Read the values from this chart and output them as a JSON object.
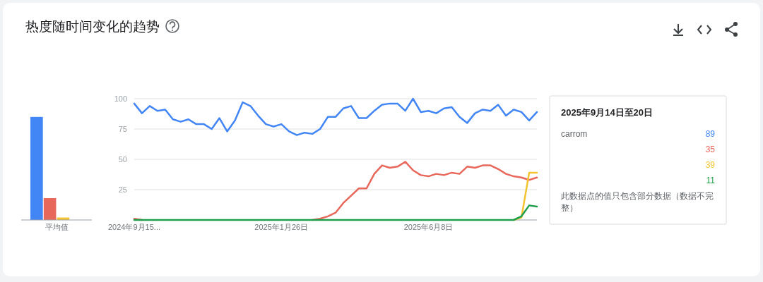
{
  "chart_data": [
    {
      "type": "bar",
      "categories": [
        "平均值"
      ],
      "ylim": [
        0,
        100
      ],
      "tick_labels": "x",
      "grid": false,
      "series": [
        {
          "color": "#4285f4",
          "values": [
            85
          ]
        },
        {
          "color": "#e8675b",
          "values": [
            18
          ]
        },
        {
          "color": "#f4c430",
          "values": [
            2
          ]
        },
        {
          "color": "#1e9e4a",
          "values": [
            0
          ]
        }
      ]
    },
    {
      "type": "line",
      "title": "热度随时间变化的趋势",
      "grid": "y",
      "xlim": [
        "2024-09-15",
        "2025-09-14"
      ],
      "ylim": [
        0,
        100
      ],
      "yticks": [
        25,
        50,
        75,
        100
      ],
      "xticks": [
        {
          "value": "2024-09-15",
          "label": "2024年9月15..."
        },
        {
          "value": "2025-01-26",
          "label": "2025年1月26日"
        },
        {
          "value": "2025-06-08",
          "label": "2025年6月8日"
        }
      ],
      "x": [
        "2024-09-15",
        "2024-09-22",
        "2024-09-29",
        "2024-10-06",
        "2024-10-13",
        "2024-10-20",
        "2024-10-27",
        "2024-11-03",
        "2024-11-10",
        "2024-11-17",
        "2024-11-24",
        "2024-12-01",
        "2024-12-08",
        "2024-12-15",
        "2024-12-22",
        "2024-12-29",
        "2025-01-05",
        "2025-01-12",
        "2025-01-19",
        "2025-01-26",
        "2025-02-02",
        "2025-02-09",
        "2025-02-16",
        "2025-02-23",
        "2025-03-02",
        "2025-03-09",
        "2025-03-16",
        "2025-03-23",
        "2025-03-30",
        "2025-04-06",
        "2025-04-13",
        "2025-04-20",
        "2025-04-27",
        "2025-05-04",
        "2025-05-11",
        "2025-05-18",
        "2025-05-25",
        "2025-06-01",
        "2025-06-08",
        "2025-06-15",
        "2025-06-22",
        "2025-06-29",
        "2025-07-06",
        "2025-07-13",
        "2025-07-20",
        "2025-07-27",
        "2025-08-03",
        "2025-08-10",
        "2025-08-17",
        "2025-08-24",
        "2025-08-31",
        "2025-09-07",
        "2025-09-14"
      ],
      "series": [
        {
          "name": "carrom",
          "color": "#4285f4",
          "values": [
            96,
            88,
            94,
            90,
            91,
            83,
            81,
            83,
            79,
            79,
            75,
            84,
            73,
            82,
            97,
            94,
            86,
            79,
            77,
            79,
            73,
            70,
            72,
            71,
            75,
            85,
            85,
            92,
            94,
            84,
            84,
            90,
            95,
            96,
            96,
            90,
            100,
            89,
            90,
            88,
            92,
            93,
            85,
            80,
            88,
            91,
            90,
            95,
            86,
            91,
            89,
            82,
            89
          ]
        },
        {
          "color": "#e8675b",
          "values": [
            1,
            0,
            null,
            null,
            null,
            null,
            null,
            null,
            null,
            null,
            null,
            null,
            null,
            null,
            null,
            null,
            null,
            null,
            null,
            null,
            null,
            null,
            null,
            0,
            1,
            3,
            6,
            14,
            20,
            26,
            26,
            38,
            45,
            43,
            44,
            48,
            41,
            37,
            36,
            38,
            37,
            39,
            38,
            44,
            43,
            45,
            45,
            42,
            38,
            36,
            35,
            33,
            35
          ]
        },
        {
          "color": "#f4c430",
          "values": [
            null,
            null,
            null,
            null,
            null,
            null,
            null,
            null,
            null,
            null,
            null,
            null,
            null,
            null,
            null,
            null,
            null,
            null,
            null,
            null,
            null,
            null,
            null,
            null,
            null,
            null,
            null,
            null,
            null,
            null,
            null,
            null,
            null,
            null,
            null,
            null,
            null,
            null,
            null,
            null,
            null,
            null,
            null,
            null,
            null,
            null,
            null,
            null,
            null,
            0,
            2,
            39,
            39
          ]
        },
        {
          "color": "#1e9e4a",
          "values": [
            0,
            0,
            0,
            0,
            0,
            0,
            0,
            0,
            0,
            0,
            0,
            0,
            0,
            0,
            0,
            0,
            0,
            0,
            0,
            0,
            0,
            0,
            0,
            0,
            0,
            0,
            0,
            0,
            0,
            0,
            0,
            0,
            0,
            0,
            0,
            0,
            0,
            0,
            0,
            0,
            0,
            0,
            0,
            0,
            0,
            0,
            0,
            0,
            0,
            0,
            3,
            12,
            11
          ]
        }
      ],
      "annotations": [
        "2025年9月14日至20日",
        "89",
        "35",
        "39",
        "11",
        "此数据点的值只包含部分数据（数据不完整）"
      ]
    }
  ]
}
